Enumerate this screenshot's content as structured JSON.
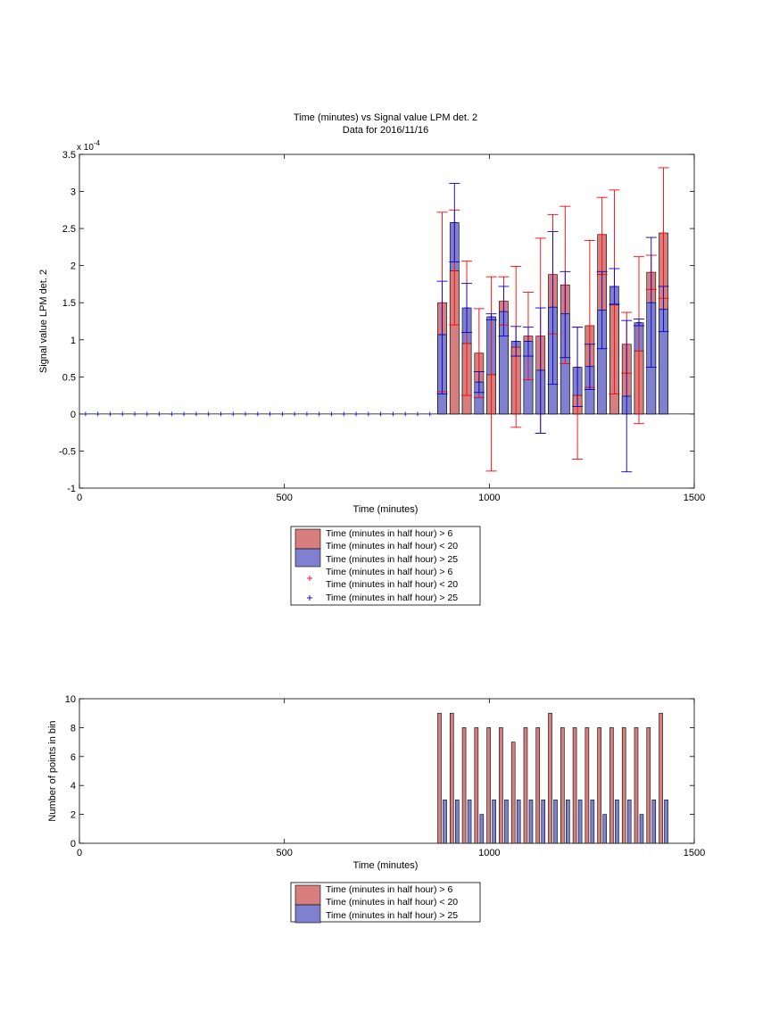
{
  "colors": {
    "red_fill": "#d77f7f",
    "blue_fill": "#8080d0",
    "red_err": "#ff0000",
    "blue_err": "#0000cc",
    "axis": "#000000"
  },
  "chart_data": [
    {
      "type": "bar",
      "title": "Time (minutes) vs Signal value LPM det. 2",
      "subtitle": "Data for 2016/11/16",
      "xlabel": "Time (minutes)",
      "ylabel": "Signal value LPM det. 2",
      "exponent_label": "x 10",
      "exponent_power": "-4",
      "xlim": [
        0,
        1500
      ],
      "ylim": [
        -1,
        3.5
      ],
      "xticks": [
        0,
        500,
        1000,
        1500
      ],
      "yticks": [
        -1,
        -0.5,
        0,
        0.5,
        1,
        1.5,
        2,
        2.5,
        3,
        3.5
      ],
      "zero_markers_x": [
        15,
        45,
        75,
        105,
        135,
        165,
        195,
        225,
        255,
        285,
        315,
        345,
        375,
        405,
        435,
        465,
        495,
        525,
        555,
        585,
        615,
        645,
        675,
        705,
        735,
        765,
        795,
        825,
        855
      ],
      "series": [
        {
          "name": "Time (minutes in half hour) > 6",
          "name_line2": "Time (minutes in half hour) < 20",
          "x": [
            885,
            915,
            945,
            975,
            1005,
            1035,
            1065,
            1095,
            1125,
            1155,
            1185,
            1215,
            1245,
            1275,
            1305,
            1335,
            1365,
            1395,
            1425
          ],
          "values": [
            1.5,
            1.93,
            0.95,
            0.82,
            0.53,
            1.52,
            0.9,
            1.05,
            1.05,
            1.88,
            1.74,
            0.25,
            1.19,
            2.42,
            1.47,
            0.94,
            0.85,
            1.91,
            2.44
          ],
          "err_low": [
            0.3,
            1.2,
            0.25,
            0.22,
            -0.77,
            1.2,
            -0.18,
            0.46,
            -0.26,
            1.08,
            0.68,
            -0.61,
            0.36,
            1.88,
            0.27,
            0.55,
            -0.13,
            1.68,
            1.56
          ],
          "err_high": [
            2.72,
            2.75,
            2.06,
            1.42,
            1.85,
            1.85,
            1.99,
            1.64,
            2.37,
            2.69,
            2.8,
            1.17,
            2.34,
            2.92,
            3.02,
            1.37,
            2.12,
            2.14,
            3.32
          ]
        },
        {
          "name": "Time (minutes in half hour) > 25",
          "x": [
            885,
            915,
            945,
            975,
            1005,
            1035,
            1065,
            1095,
            1125,
            1155,
            1185,
            1215,
            1245,
            1275,
            1305,
            1335,
            1365,
            1395,
            1425
          ],
          "values": [
            1.07,
            2.58,
            1.43,
            0.43,
            1.31,
            1.38,
            0.98,
            0.98,
            0.59,
            1.44,
            1.35,
            0.63,
            0.64,
            1.4,
            1.72,
            0.24,
            1.23,
            1.5,
            1.41
          ],
          "err_low": [
            0.27,
            2.05,
            1.1,
            0.29,
            1.27,
            1.05,
            0.78,
            0.78,
            -0.26,
            0.4,
            0.76,
            0.1,
            0.33,
            0.88,
            1.48,
            -0.78,
            1.19,
            0.63,
            1.11
          ],
          "err_high": [
            1.79,
            3.11,
            1.76,
            0.57,
            1.35,
            1.72,
            1.18,
            1.17,
            1.43,
            2.46,
            1.92,
            1.17,
            0.94,
            1.92,
            1.96,
            1.26,
            1.28,
            2.38,
            1.72
          ]
        }
      ],
      "error_legend": [
        {
          "name": "Time (minutes in half hour) > 6",
          "marker": "+"
        },
        {
          "name": "Time (minutes in half hour) < 20",
          "marker": "+"
        },
        {
          "name": "Time (minutes in half hour) > 25",
          "marker": "+"
        }
      ],
      "legend_position": "below"
    },
    {
      "type": "bar",
      "xlabel": "Time (minutes)",
      "ylabel": "Number of points in bin",
      "xlim": [
        0,
        1500
      ],
      "ylim": [
        0,
        10
      ],
      "xticks": [
        0,
        500,
        1000,
        1500
      ],
      "yticks": [
        0,
        2,
        4,
        6,
        8,
        10
      ],
      "series": [
        {
          "name": "Time (minutes in half hour) > 6",
          "name_line2": "Time (minutes in half hour) < 20",
          "x": [
            885,
            915,
            945,
            975,
            1005,
            1035,
            1065,
            1095,
            1125,
            1155,
            1185,
            1215,
            1245,
            1275,
            1305,
            1335,
            1365,
            1395,
            1425
          ],
          "values": [
            9,
            9,
            8,
            8,
            8,
            8,
            7,
            8,
            8,
            9,
            8,
            8,
            8,
            8,
            8,
            8,
            8,
            8,
            9
          ]
        },
        {
          "name": "Time (minutes in half hour) > 25",
          "x": [
            885,
            915,
            945,
            975,
            1005,
            1035,
            1065,
            1095,
            1125,
            1155,
            1185,
            1215,
            1245,
            1275,
            1305,
            1335,
            1365,
            1395,
            1425
          ],
          "values": [
            3,
            3,
            3,
            2,
            3,
            3,
            3,
            3,
            3,
            3,
            3,
            3,
            3,
            2,
            3,
            3,
            2,
            3,
            3
          ]
        }
      ],
      "legend_position": "below"
    }
  ]
}
